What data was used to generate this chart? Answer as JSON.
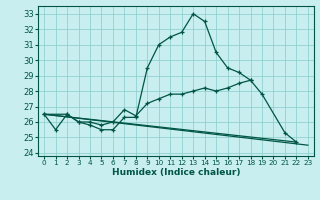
{
  "xlabel": "Humidex (Indice chaleur)",
  "bg_color": "#c8eef0",
  "grid_color": "#88cccc",
  "line_color": "#005544",
  "xlim": [
    -0.5,
    23.5
  ],
  "ylim": [
    23.8,
    33.5
  ],
  "yticks": [
    24,
    25,
    26,
    27,
    28,
    29,
    30,
    31,
    32,
    33
  ],
  "xticks": [
    0,
    1,
    2,
    3,
    4,
    5,
    6,
    7,
    8,
    9,
    10,
    11,
    12,
    13,
    14,
    15,
    16,
    17,
    18,
    19,
    20,
    21,
    22,
    23
  ],
  "curve_main_x": [
    0,
    1,
    2,
    3,
    4,
    5,
    6,
    7,
    8,
    9,
    10,
    11,
    12,
    13,
    14,
    15,
    16,
    17,
    18,
    19,
    21,
    22
  ],
  "curve_main_y": [
    26.5,
    25.5,
    26.5,
    26.0,
    25.8,
    25.5,
    25.5,
    26.3,
    26.3,
    29.5,
    31.0,
    31.5,
    31.8,
    33.0,
    32.5,
    30.5,
    29.5,
    29.2,
    28.7,
    27.8,
    25.3,
    24.7
  ],
  "curve2_x": [
    0,
    2,
    3,
    4,
    5,
    6,
    7,
    8,
    9,
    10,
    11,
    12,
    13,
    14,
    15,
    16,
    17,
    18
  ],
  "curve2_y": [
    26.5,
    26.5,
    26.0,
    26.0,
    25.8,
    26.0,
    26.8,
    26.4,
    27.2,
    27.5,
    27.8,
    27.8,
    28.0,
    28.2,
    28.0,
    28.2,
    28.5,
    28.7
  ],
  "line3_x": [
    0,
    22
  ],
  "line3_y": [
    26.5,
    24.7
  ],
  "line4_x": [
    0,
    23
  ],
  "line4_y": [
    26.5,
    24.5
  ]
}
